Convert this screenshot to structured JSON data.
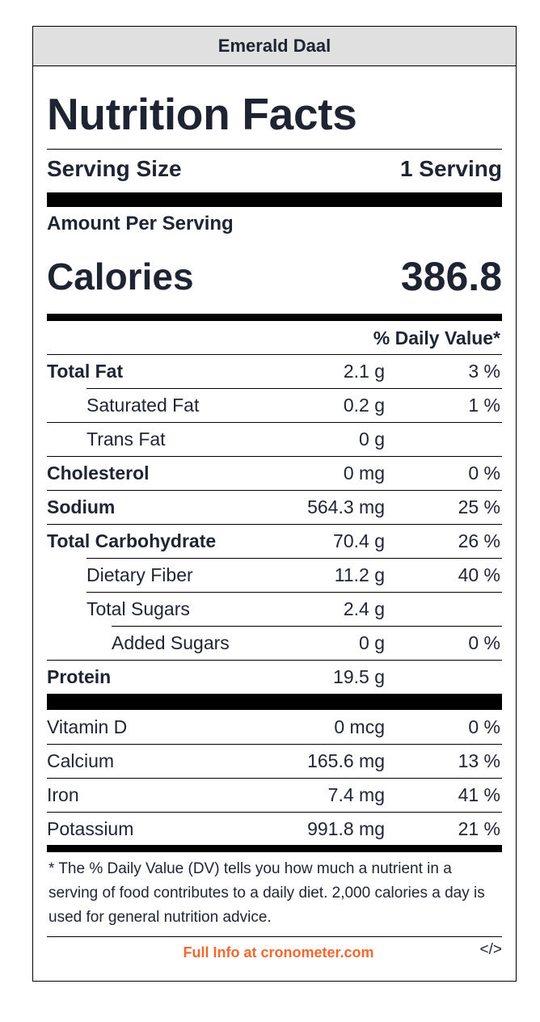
{
  "recipe_name": "Emerald Daal",
  "title": "Nutrition Facts",
  "serving": {
    "label": "Serving Size",
    "value": "1 Serving"
  },
  "amount_per_serving": "Amount Per Serving",
  "calories": {
    "label": "Calories",
    "value": "386.8"
  },
  "daily_value_header": "% Daily Value*",
  "nutrients": [
    {
      "name": "Total Fat",
      "amount": "2.1 g",
      "dv": "3 %"
    },
    {
      "name": "Saturated Fat",
      "amount": "0.2 g",
      "dv": "1 %"
    },
    {
      "name": "Trans Fat",
      "amount": "0 g",
      "dv": ""
    },
    {
      "name": "Cholesterol",
      "amount": "0 mg",
      "dv": "0 %"
    },
    {
      "name": "Sodium",
      "amount": "564.3 mg",
      "dv": "25 %"
    },
    {
      "name": "Total Carbohydrate",
      "amount": "70.4 g",
      "dv": "26 %"
    },
    {
      "name": "Dietary Fiber",
      "amount": "11.2 g",
      "dv": "40 %"
    },
    {
      "name": "Total Sugars",
      "amount": "2.4 g",
      "dv": ""
    },
    {
      "name": "Added Sugars",
      "amount": "0 g",
      "dv": "0 %"
    },
    {
      "name": "Protein",
      "amount": "19.5 g",
      "dv": ""
    }
  ],
  "micronutrients": [
    {
      "name": "Vitamin D",
      "amount": "0 mcg",
      "dv": "0 %"
    },
    {
      "name": "Calcium",
      "amount": "165.6 mg",
      "dv": "13 %"
    },
    {
      "name": "Iron",
      "amount": "7.4 mg",
      "dv": "41 %"
    },
    {
      "name": "Potassium",
      "amount": "991.8 mg",
      "dv": "21 %"
    }
  ],
  "footnote": "* The % Daily Value (DV) tells you how much a nutrient in a serving of food contributes to a daily diet. 2,000 calories a day is used for general nutrition advice.",
  "footer": {
    "link_text": "Full Info at cronometer.com",
    "embed_icon_text": "</>"
  },
  "colors": {
    "header_bg": "#e0e0e0",
    "text": "#1f2433",
    "link": "#f2692e"
  }
}
